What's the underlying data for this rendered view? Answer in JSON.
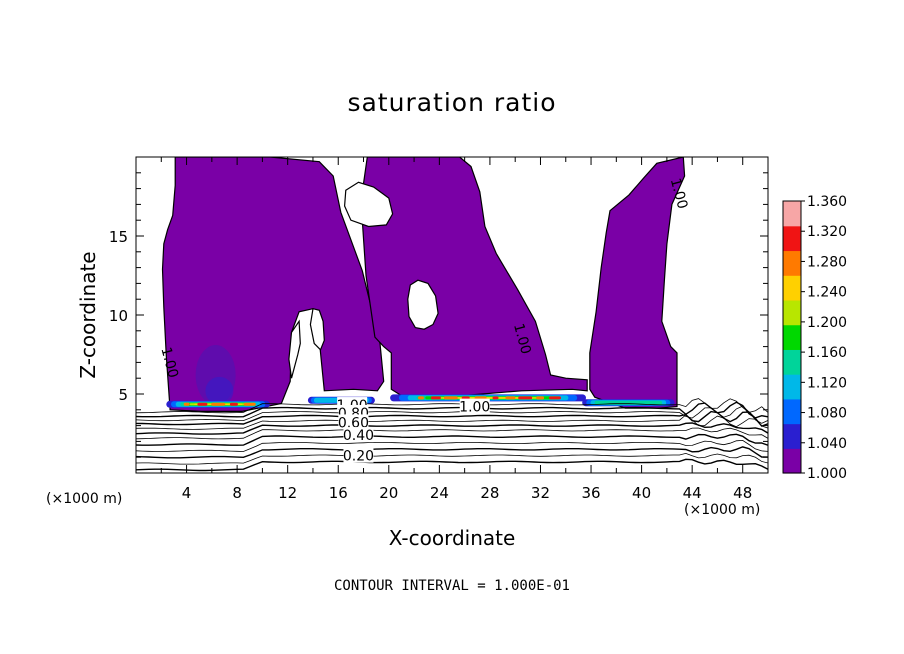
{
  "chart_data": {
    "type": "heatmap",
    "title": "saturation ratio",
    "xlabel": "X-coordinate",
    "ylabel": "Z-coordinate",
    "x_unit_label": "(×1000 m)",
    "xlim": [
      0,
      50
    ],
    "ylim": [
      0,
      20
    ],
    "x_ticks": [
      4,
      8,
      12,
      16,
      20,
      24,
      28,
      32,
      36,
      40,
      44,
      48
    ],
    "y_ticks": [
      5,
      10,
      15
    ],
    "colorbar": {
      "min": 1.0,
      "max": 1.36,
      "labels": [
        "1.000",
        "1.040",
        "1.080",
        "1.120",
        "1.160",
        "1.200",
        "1.240",
        "1.280",
        "1.320",
        "1.360"
      ],
      "colors": [
        "#7a00a6",
        "#2a1fd0",
        "#0068ff",
        "#00b8e8",
        "#00d49a",
        "#00d800",
        "#b8e600",
        "#ffd000",
        "#ff7a00",
        "#f01414",
        "#f7a6a6"
      ]
    },
    "contour_labels": [
      {
        "text": "1.00",
        "x": 2.7,
        "z": 7.0
      },
      {
        "text": "1.00",
        "x": 30.6,
        "z": 8.5
      },
      {
        "text": "1.00",
        "x": 43.0,
        "z": 17.7
      },
      {
        "text": "1.00",
        "x": 26.8,
        "z": 4.2
      },
      {
        "text": "1.00",
        "x": 17.1,
        "z": 4.3
      },
      {
        "text": "0.80",
        "x": 17.2,
        "z": 3.8
      },
      {
        "text": "0.60",
        "x": 17.2,
        "z": 3.2
      },
      {
        "text": "0.40",
        "x": 17.6,
        "z": 2.4
      },
      {
        "text": "0.20",
        "x": 17.6,
        "z": 1.1
      }
    ],
    "contour_interval_text": "CONTOUR INTERVAL = 1.000E-01"
  }
}
